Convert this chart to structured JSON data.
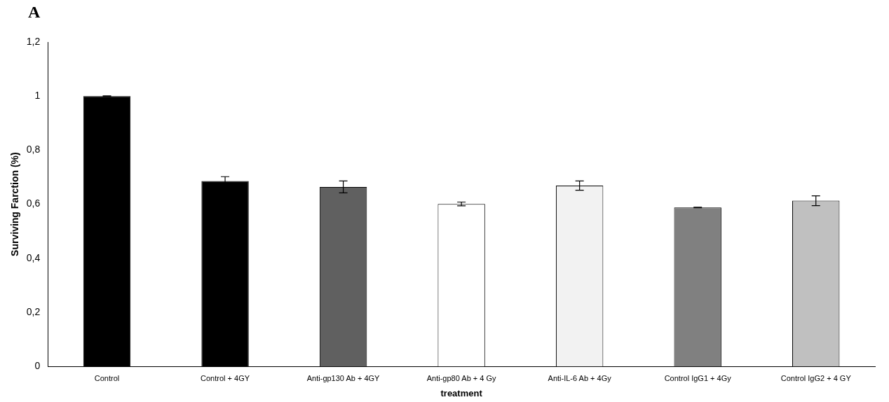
{
  "chart_data": {
    "type": "bar",
    "xlabel": "treatment",
    "ylabel": "Surviving Farction (%)",
    "annotations": [
      "A"
    ],
    "categories": [
      "Control",
      "Control + 4GY",
      "Anti-gp130 Ab + 4GY",
      "Anti-gp80 Ab + 4 Gy",
      "Anti-IL-6 Ab + 4Gy",
      "Control IgG1 + 4Gy",
      "Control IgG2 + 4 GY"
    ],
    "values": [
      1.0,
      0.686,
      0.664,
      0.601,
      0.669,
      0.588,
      0.613
    ],
    "errors": [
      0.001,
      0.016,
      0.022,
      0.007,
      0.017,
      0.001,
      0.018
    ],
    "colors": [
      "#000000",
      "#000000",
      "#606060",
      "#ffffff",
      "#f2f2f2",
      "#808080",
      "#c0c0c0"
    ],
    "ylim": [
      0,
      1.2
    ],
    "yticks": [
      {
        "value": 0,
        "label": "0"
      },
      {
        "value": 0.2,
        "label": "0,2"
      },
      {
        "value": 0.4,
        "label": "0,4"
      },
      {
        "value": 0.6,
        "label": "0,6"
      },
      {
        "value": 0.8,
        "label": "0,8"
      },
      {
        "value": 1,
        "label": "1"
      },
      {
        "value": 1.2,
        "label": "1,2"
      }
    ],
    "grid": false
  }
}
